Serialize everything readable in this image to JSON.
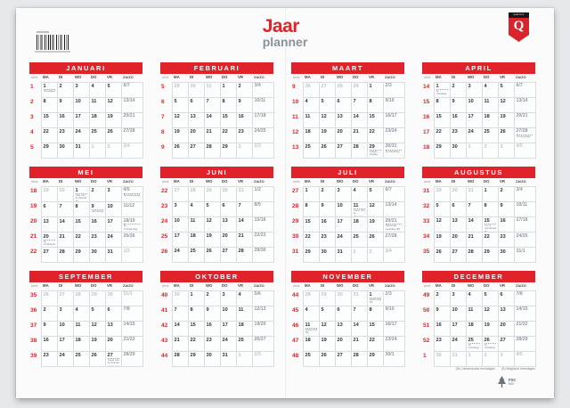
{
  "page": {
    "title": "Jaar",
    "subtitle": "planner"
  },
  "branding": {
    "logo_text": "quantore",
    "logo_letter": "Q",
    "pennant_red": "#d8242b"
  },
  "colors": {
    "accent_red": "#e0232a",
    "subtitle_grey": "#8a9198",
    "weekend_grey": "#8f969d",
    "othermonth_grey": "#bdc3c8"
  },
  "weekday_headers": [
    "week",
    "MA",
    "DI",
    "WO",
    "DO",
    "VR",
    "ZA/ZO"
  ],
  "footnote": {
    "nl": "(NL) Nederlandse feestdagen",
    "be": "(B) Belgische feestdagen"
  },
  "fsc": {
    "label": "FSC",
    "sub": "MIX"
  },
  "months": [
    {
      "name": "JANUARI",
      "rows": [
        [
          "1",
          "1*Nieuwjaarsdag",
          "2",
          "3",
          "4",
          "5",
          "6/7"
        ],
        [
          "2",
          "8",
          "9",
          "10",
          "11",
          "12",
          "13/14"
        ],
        [
          "3",
          "15",
          "16",
          "17",
          "18",
          "19",
          "20/21"
        ],
        [
          "4",
          "22",
          "23",
          "24",
          "25",
          "26",
          "27/28"
        ],
        [
          "5",
          "29",
          "30",
          "31",
          "g1",
          "g2",
          "g3/4"
        ]
      ]
    },
    {
      "name": "FEBRUARI",
      "rows": [
        [
          "5",
          "g29",
          "g30",
          "g31",
          "1",
          "2",
          "3/4"
        ],
        [
          "6",
          "5",
          "6",
          "7",
          "8",
          "9",
          "10/11"
        ],
        [
          "7",
          "12",
          "13",
          "14",
          "15",
          "16",
          "17/18"
        ],
        [
          "8",
          "19",
          "20",
          "21",
          "22",
          "23",
          "24/25"
        ],
        [
          "9",
          "26",
          "27",
          "28",
          "29",
          "g1",
          "g2/3"
        ]
      ]
    },
    {
      "name": "MAART",
      "rows": [
        [
          "9",
          "g26",
          "g27",
          "g28",
          "g29",
          "1",
          "2/3"
        ],
        [
          "10",
          "4",
          "5",
          "6",
          "7",
          "8",
          "9/10"
        ],
        [
          "11",
          "11",
          "12",
          "13",
          "14",
          "15",
          "16/17"
        ],
        [
          "12",
          "18",
          "19",
          "20",
          "21",
          "22",
          "23/24"
        ],
        [
          "13",
          "25",
          "26",
          "27",
          "28",
          "29*Goede Vrijdag",
          "30/31*1e Paasdag"
        ]
      ]
    },
    {
      "name": "APRIL",
      "rows": [
        [
          "14",
          "1*2e Paasdag",
          "2",
          "3",
          "4",
          "5",
          "6/7"
        ],
        [
          "15",
          "8",
          "9",
          "10",
          "11",
          "12",
          "13/14"
        ],
        [
          "16",
          "15",
          "16",
          "17",
          "18",
          "19",
          "20/21"
        ],
        [
          "17",
          "22",
          "23",
          "24",
          "25",
          "26",
          "27/28*Koningsdag"
        ],
        [
          "18",
          "29",
          "30",
          "g1",
          "g2",
          "g3",
          "g4/5"
        ]
      ]
    },
    {
      "name": "MEI",
      "rows": [
        [
          "18",
          "g29",
          "g30",
          "1*Dag van de Arbeid (B)",
          "2",
          "3",
          "4/5*Bevrijdingsdag"
        ],
        [
          "19",
          "6",
          "7",
          "8",
          "9*Hemelvaartsdag",
          "10",
          "11/12"
        ],
        [
          "20",
          "13",
          "14",
          "15",
          "16",
          "17",
          "18/19*1e Pinksterdag"
        ],
        [
          "21",
          "20*2e Pinksterdag",
          "21",
          "22",
          "23",
          "24",
          "25/26"
        ],
        [
          "22",
          "27",
          "28",
          "29",
          "30",
          "31",
          "g1/2"
        ]
      ]
    },
    {
      "name": "JUNI",
      "rows": [
        [
          "22",
          "g27",
          "g28",
          "g29",
          "g30",
          "g31",
          "1/2"
        ],
        [
          "23",
          "3",
          "4",
          "5",
          "6",
          "7",
          "8/9"
        ],
        [
          "24",
          "10",
          "11",
          "12",
          "13",
          "14",
          "15/16"
        ],
        [
          "25",
          "17",
          "18",
          "19",
          "20",
          "21",
          "22/23"
        ],
        [
          "26",
          "24",
          "25",
          "26",
          "27",
          "28",
          "29/30"
        ]
      ]
    },
    {
      "name": "JULI",
      "rows": [
        [
          "27",
          "1",
          "2",
          "3",
          "4",
          "5",
          "6/7"
        ],
        [
          "28",
          "8",
          "9",
          "10",
          "11*Feest van de Vlaamse Gemeenschap (B)",
          "12",
          "13/14"
        ],
        [
          "29",
          "15",
          "16",
          "17",
          "18",
          "19",
          "20/21*Nationale feestdag (B)"
        ],
        [
          "30",
          "22",
          "23",
          "24",
          "25",
          "26",
          "27/28"
        ],
        [
          "31",
          "29",
          "30",
          "31",
          "g1",
          "g2",
          "g3/4"
        ]
      ]
    },
    {
      "name": "AUGUSTUS",
      "rows": [
        [
          "31",
          "g29",
          "g30",
          "g31",
          "1",
          "2",
          "3/4"
        ],
        [
          "32",
          "5",
          "6",
          "7",
          "8",
          "9",
          "10/11"
        ],
        [
          "33",
          "12",
          "13",
          "14",
          "15*O.L.V. Hemelvaart (B)",
          "16",
          "17/18"
        ],
        [
          "34",
          "19",
          "20",
          "21",
          "22",
          "23",
          "24/25"
        ],
        [
          "35",
          "26",
          "27",
          "28",
          "29",
          "30",
          "31/1"
        ]
      ]
    },
    {
      "name": "SEPTEMBER",
      "rows": [
        [
          "35",
          "g26",
          "g27",
          "g28",
          "g29",
          "g30",
          "g31/1"
        ],
        [
          "36",
          "2",
          "3",
          "4",
          "5",
          "6",
          "7/8"
        ],
        [
          "37",
          "9",
          "10",
          "11",
          "12",
          "13",
          "14/15"
        ],
        [
          "38",
          "16",
          "17",
          "18",
          "19",
          "20",
          "21/22"
        ],
        [
          "39",
          "23",
          "24",
          "25",
          "26",
          "27*Feest van de Franse Gemeenschap (B)",
          "28/29"
        ]
      ]
    },
    {
      "name": "OKTOBER",
      "rows": [
        [
          "40",
          "g30",
          "1",
          "2",
          "3",
          "4",
          "5/6"
        ],
        [
          "41",
          "7",
          "8",
          "9",
          "10",
          "11",
          "12/13"
        ],
        [
          "42",
          "14",
          "15",
          "16",
          "17",
          "18",
          "19/20"
        ],
        [
          "43",
          "21",
          "22",
          "23",
          "24",
          "25",
          "26/27"
        ],
        [
          "44",
          "28",
          "29",
          "30",
          "31",
          "g1",
          "g2/3"
        ]
      ]
    },
    {
      "name": "NOVEMBER",
      "rows": [
        [
          "44",
          "g28",
          "g29",
          "g30",
          "g31",
          "1*Allerheiligen (B)",
          "2/3"
        ],
        [
          "45",
          "4",
          "5",
          "6",
          "7",
          "8",
          "9/10"
        ],
        [
          "46",
          "11*Wapenstilstand (B)",
          "12",
          "13",
          "14",
          "15",
          "16/17"
        ],
        [
          "47",
          "18",
          "19",
          "20",
          "21",
          "22",
          "23/24"
        ],
        [
          "48",
          "25",
          "26",
          "27",
          "28",
          "29",
          "30/1"
        ]
      ]
    },
    {
      "name": "DECEMBER",
      "rows": [
        [
          "49",
          "2",
          "3",
          "4",
          "5",
          "6",
          "7/8"
        ],
        [
          "50",
          "9",
          "10",
          "11",
          "12",
          "13",
          "14/15"
        ],
        [
          "51",
          "16",
          "17",
          "18",
          "19",
          "20",
          "21/22"
        ],
        [
          "52",
          "23",
          "24",
          "25*1e Kerstdag",
          "26*2e Kerstdag",
          "27",
          "28/29"
        ],
        [
          "1",
          "g30",
          "g31",
          "g1",
          "g2",
          "g3",
          "g4/5"
        ]
      ]
    }
  ]
}
